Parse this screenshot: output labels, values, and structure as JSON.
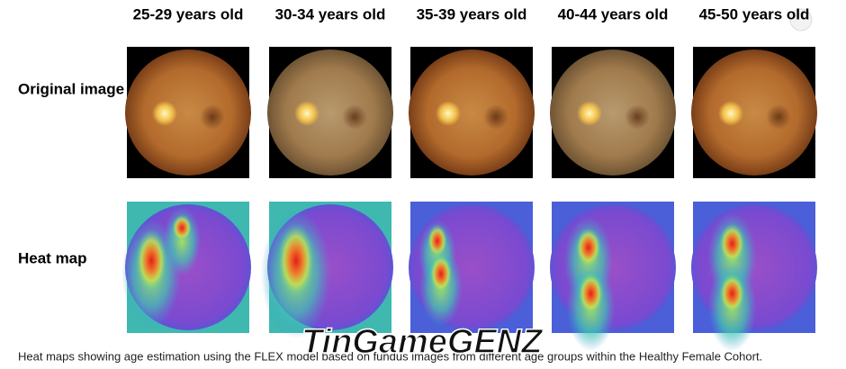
{
  "columns": [
    "25-29 years old",
    "30-34 years old",
    "35-39 years old",
    "40-44 years old",
    "45-50 years old"
  ],
  "rows": [
    "Original image",
    "Heat map"
  ],
  "watermark": "TinGameGENZ",
  "caption": "Heat maps showing age estimation using the FLEX model based on fundus images from different age groups within the Healthy Female Cohort."
}
